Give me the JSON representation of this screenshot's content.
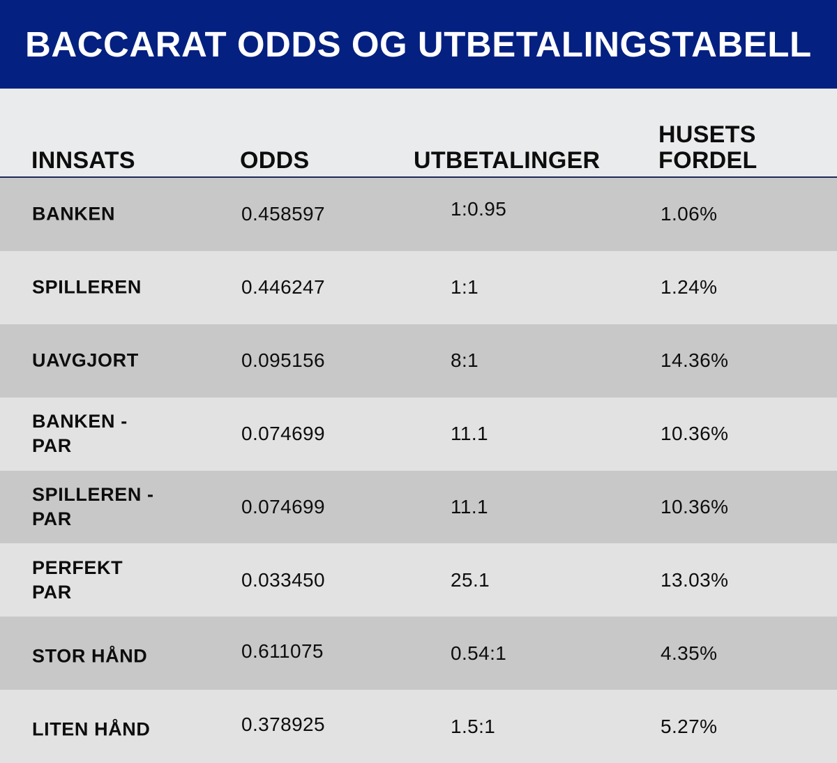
{
  "title": "BACCARAT ODDS OG UTBETALINGSTABELL",
  "colors": {
    "title_background": "#042080",
    "title_text": "#ffffff",
    "header_background": "#eaebec",
    "row_dark": "#c8c8c8",
    "row_light": "#e2e2e2",
    "header_rule": "#1e2a55"
  },
  "table": {
    "headers": [
      "INNSATS",
      "ODDS",
      "UTBETALINGER",
      "HUSETS FORDEL"
    ],
    "rows": [
      {
        "innsats": "BANKEN",
        "odds": "0.458597",
        "utbetalinger": "1:0.95",
        "husets_fordel": "1.06%"
      },
      {
        "innsats": "SPILLEREN",
        "odds": "0.446247",
        "utbetalinger": "1:1",
        "husets_fordel": "1.24%"
      },
      {
        "innsats": "UAVGJORT",
        "odds": "0.095156",
        "utbetalinger": "8:1",
        "husets_fordel": "14.36%"
      },
      {
        "innsats": "BANKEN - PAR",
        "odds": "0.074699",
        "utbetalinger": "11.1",
        "husets_fordel": "10.36%"
      },
      {
        "innsats": "SPILLEREN - PAR",
        "odds": "0.074699",
        "utbetalinger": "11.1",
        "husets_fordel": "10.36%"
      },
      {
        "innsats": "PERFEKT PAR",
        "odds": "0.033450",
        "utbetalinger": "25.1",
        "husets_fordel": "13.03%"
      },
      {
        "innsats": "STOR HÅND",
        "odds": "0.611075",
        "utbetalinger": "0.54:1",
        "husets_fordel": "4.35%"
      },
      {
        "innsats": "LITEN HÅND",
        "odds": "0.378925",
        "utbetalinger": "1.5:1",
        "husets_fordel": "5.27%"
      }
    ]
  }
}
